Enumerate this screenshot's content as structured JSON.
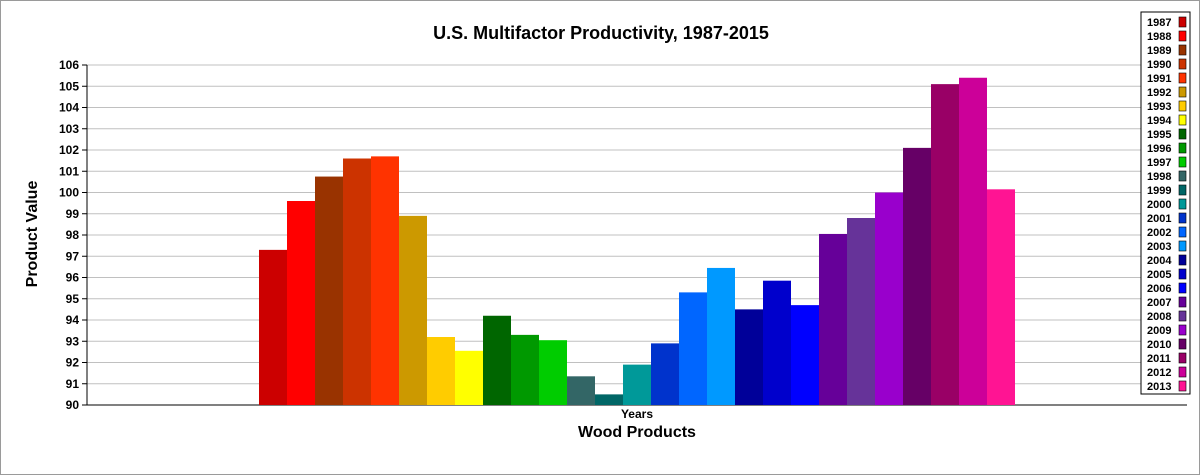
{
  "chart_data": {
    "type": "bar",
    "title": "U.S. Multifactor Productivity, 1987-2015",
    "xlabel": "Wood Products",
    "ylabel": "Product Value",
    "categories": [
      "Years"
    ],
    "ylim": [
      90,
      106
    ],
    "yticks": [
      90,
      91,
      92,
      93,
      94,
      95,
      96,
      97,
      98,
      99,
      100,
      101,
      102,
      103,
      104,
      105,
      106
    ],
    "grid": true,
    "legend_position": "right",
    "series": [
      {
        "name": "1987",
        "value": 97.3,
        "color": "#cc0000"
      },
      {
        "name": "1988",
        "value": 99.6,
        "color": "#ff0000"
      },
      {
        "name": "1989",
        "value": 100.75,
        "color": "#993300"
      },
      {
        "name": "1990",
        "value": 101.6,
        "color": "#cc3300"
      },
      {
        "name": "1991",
        "value": 101.7,
        "color": "#ff3300"
      },
      {
        "name": "1992",
        "value": 98.9,
        "color": "#cc9900"
      },
      {
        "name": "1993",
        "value": 93.2,
        "color": "#ffcc00"
      },
      {
        "name": "1994",
        "value": 92.55,
        "color": "#ffff00"
      },
      {
        "name": "1995",
        "value": 94.2,
        "color": "#006600"
      },
      {
        "name": "1996",
        "value": 93.3,
        "color": "#009900"
      },
      {
        "name": "1997",
        "value": 93.05,
        "color": "#00cc00"
      },
      {
        "name": "1998",
        "value": 91.35,
        "color": "#336666"
      },
      {
        "name": "1999",
        "value": 90.5,
        "color": "#006666"
      },
      {
        "name": "2000",
        "value": 91.9,
        "color": "#009999"
      },
      {
        "name": "2001",
        "value": 92.9,
        "color": "#0033cc"
      },
      {
        "name": "2002",
        "value": 95.3,
        "color": "#0066ff"
      },
      {
        "name": "2003",
        "value": 96.45,
        "color": "#0099ff"
      },
      {
        "name": "2004",
        "value": 94.5,
        "color": "#000099"
      },
      {
        "name": "2005",
        "value": 95.85,
        "color": "#0000cc"
      },
      {
        "name": "2006",
        "value": 94.7,
        "color": "#0000ff"
      },
      {
        "name": "2007",
        "value": 98.05,
        "color": "#660099"
      },
      {
        "name": "2008",
        "value": 98.8,
        "color": "#663399"
      },
      {
        "name": "2009",
        "value": 100.0,
        "color": "#9900cc"
      },
      {
        "name": "2010",
        "value": 102.1,
        "color": "#660066"
      },
      {
        "name": "2011",
        "value": 105.1,
        "color": "#990066"
      },
      {
        "name": "2012",
        "value": 105.4,
        "color": "#cc0099"
      },
      {
        "name": "2013",
        "value": 100.15,
        "color": "#ff1493"
      }
    ]
  }
}
